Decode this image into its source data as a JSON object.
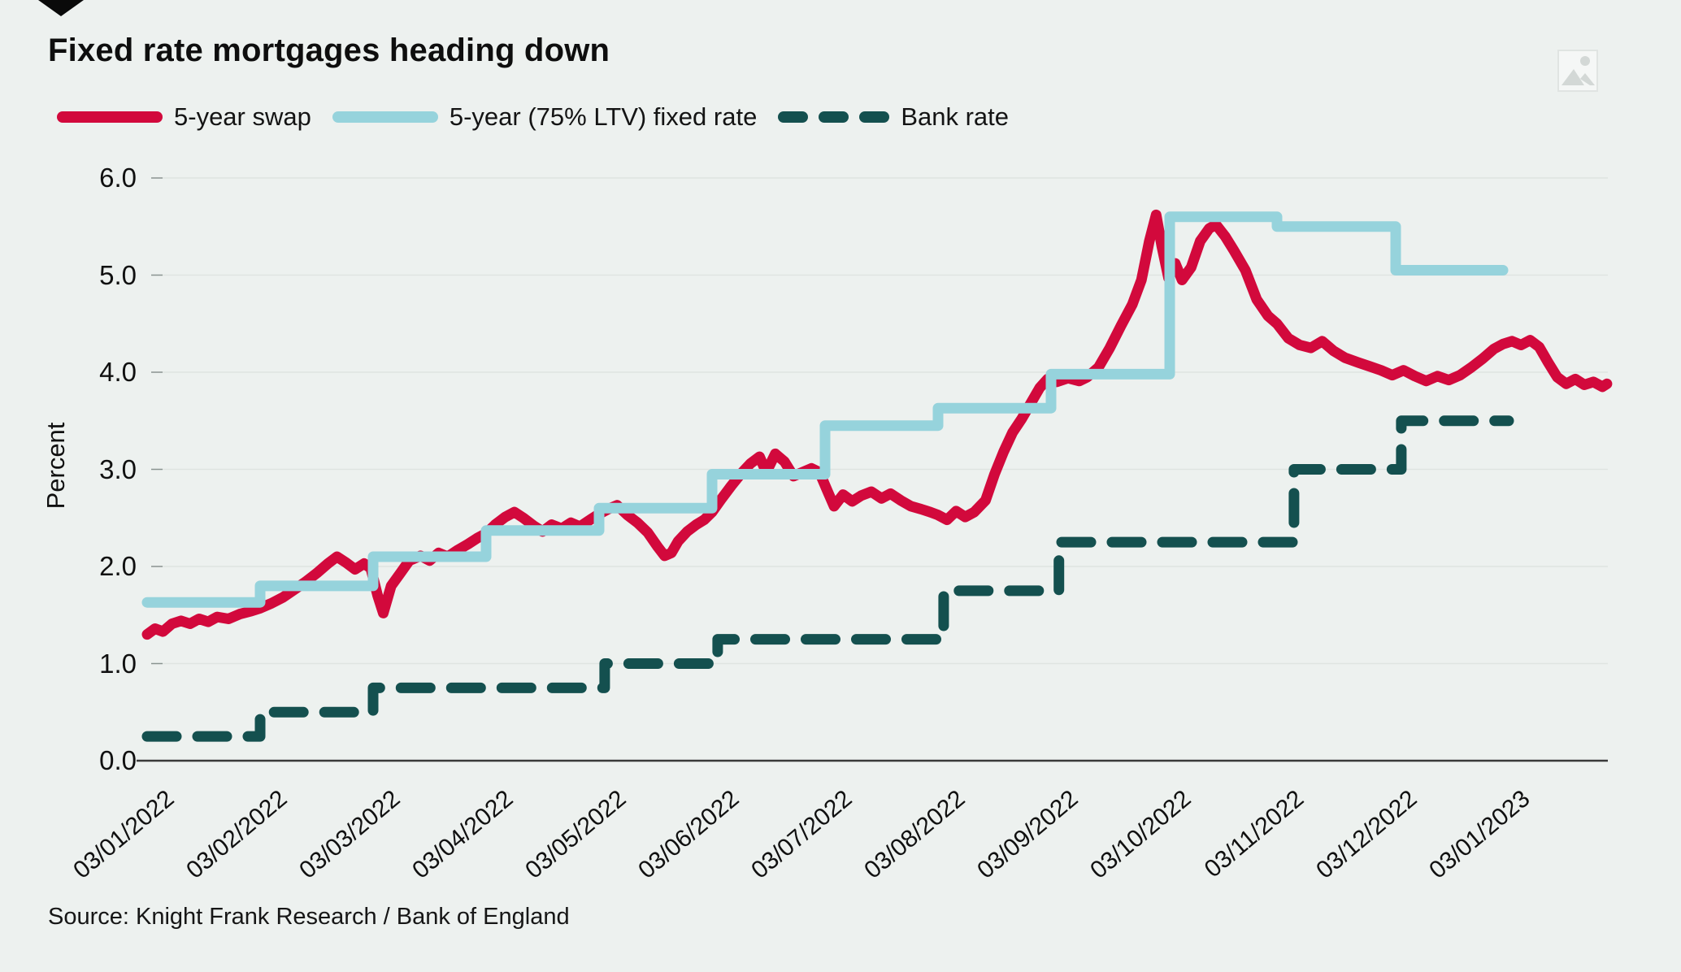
{
  "header": {
    "title": "Fixed rate mortgages heading down"
  },
  "legend": {
    "items": [
      {
        "label": "5-year swap",
        "color": "#d2093c",
        "style": "solid"
      },
      {
        "label": "5-year (75% LTV) fixed rate",
        "color": "#96d3dc",
        "style": "solid"
      },
      {
        "label": "Bank rate",
        "color": "#14504f",
        "style": "dashed"
      }
    ]
  },
  "footer": {
    "source": "Source: Knight Frank Research / Bank of England"
  },
  "icons": {
    "top_right": "image-placeholder-icon",
    "top_left": "down-arrow-marker-icon"
  },
  "colors": {
    "background": "#edf1ef",
    "gridline": "#dfe4e1",
    "axis": "#3a3a3a",
    "swap": "#d2093c",
    "fixed": "#96d3dc",
    "bank": "#14504f"
  },
  "chart_data": {
    "type": "line",
    "title": "Fixed rate mortgages heading down",
    "xlabel": "",
    "ylabel": "Percent",
    "ylim": [
      0.0,
      6.0
    ],
    "grid": "horizontal",
    "legend_position": "top-left",
    "x_unit": "months since 03/01/2022 (fractional)",
    "y_ticks": [
      "0.0",
      "1.0",
      "2.0",
      "3.0",
      "4.0",
      "5.0",
      "6.0"
    ],
    "x_ticks": [
      "03/01/2022",
      "03/02/2022",
      "03/03/2022",
      "03/04/2022",
      "03/05/2022",
      "03/06/2022",
      "03/07/2022",
      "03/08/2022",
      "03/09/2022",
      "03/10/2022",
      "03/11/2022",
      "03/12/2022",
      "03/01/2023"
    ],
    "series": [
      {
        "name": "5-year swap",
        "color": "#d2093c",
        "dashed": false,
        "points": [
          [
            0,
            1.3
          ],
          [
            0.07,
            1.36
          ],
          [
            0.14,
            1.33
          ],
          [
            0.22,
            1.41
          ],
          [
            0.3,
            1.44
          ],
          [
            0.38,
            1.41
          ],
          [
            0.46,
            1.46
          ],
          [
            0.54,
            1.43
          ],
          [
            0.62,
            1.48
          ],
          [
            0.72,
            1.46
          ],
          [
            0.82,
            1.51
          ],
          [
            0.92,
            1.54
          ],
          [
            1,
            1.57
          ],
          [
            1.1,
            1.62
          ],
          [
            1.2,
            1.68
          ],
          [
            1.3,
            1.76
          ],
          [
            1.4,
            1.84
          ],
          [
            1.5,
            1.93
          ],
          [
            1.6,
            2.03
          ],
          [
            1.68,
            2.1
          ],
          [
            1.76,
            2.04
          ],
          [
            1.84,
            1.97
          ],
          [
            1.92,
            2.03
          ],
          [
            1.98,
            1.98
          ],
          [
            2.04,
            1.7
          ],
          [
            2.09,
            1.52
          ],
          [
            2.16,
            1.8
          ],
          [
            2.24,
            1.93
          ],
          [
            2.32,
            2.06
          ],
          [
            2.42,
            2.11
          ],
          [
            2.5,
            2.06
          ],
          [
            2.58,
            2.14
          ],
          [
            2.66,
            2.1
          ],
          [
            2.75,
            2.17
          ],
          [
            2.84,
            2.23
          ],
          [
            2.92,
            2.29
          ],
          [
            3,
            2.34
          ],
          [
            3.08,
            2.43
          ],
          [
            3.17,
            2.51
          ],
          [
            3.25,
            2.56
          ],
          [
            3.33,
            2.5
          ],
          [
            3.42,
            2.42
          ],
          [
            3.5,
            2.36
          ],
          [
            3.58,
            2.43
          ],
          [
            3.67,
            2.39
          ],
          [
            3.75,
            2.45
          ],
          [
            3.83,
            2.41
          ],
          [
            3.92,
            2.48
          ],
          [
            4,
            2.54
          ],
          [
            4.08,
            2.59
          ],
          [
            4.16,
            2.63
          ],
          [
            4.25,
            2.53
          ],
          [
            4.34,
            2.45
          ],
          [
            4.43,
            2.35
          ],
          [
            4.52,
            2.2
          ],
          [
            4.58,
            2.11
          ],
          [
            4.64,
            2.14
          ],
          [
            4.7,
            2.26
          ],
          [
            4.78,
            2.36
          ],
          [
            4.86,
            2.43
          ],
          [
            4.93,
            2.48
          ],
          [
            5,
            2.56
          ],
          [
            5.08,
            2.69
          ],
          [
            5.17,
            2.83
          ],
          [
            5.26,
            2.96
          ],
          [
            5.34,
            3.06
          ],
          [
            5.42,
            3.13
          ],
          [
            5.48,
            2.97
          ],
          [
            5.56,
            3.16
          ],
          [
            5.64,
            3.08
          ],
          [
            5.72,
            2.93
          ],
          [
            5.8,
            2.97
          ],
          [
            5.88,
            3.01
          ],
          [
            5.95,
            2.97
          ],
          [
            6.02,
            2.78
          ],
          [
            6.08,
            2.62
          ],
          [
            6.16,
            2.74
          ],
          [
            6.24,
            2.67
          ],
          [
            6.32,
            2.73
          ],
          [
            6.41,
            2.77
          ],
          [
            6.5,
            2.7
          ],
          [
            6.58,
            2.75
          ],
          [
            6.67,
            2.68
          ],
          [
            6.76,
            2.62
          ],
          [
            6.85,
            2.59
          ],
          [
            6.93,
            2.56
          ],
          [
            7,
            2.53
          ],
          [
            7.08,
            2.48
          ],
          [
            7.16,
            2.57
          ],
          [
            7.24,
            2.51
          ],
          [
            7.32,
            2.56
          ],
          [
            7.42,
            2.68
          ],
          [
            7.5,
            2.95
          ],
          [
            7.58,
            3.18
          ],
          [
            7.66,
            3.38
          ],
          [
            7.74,
            3.52
          ],
          [
            7.82,
            3.68
          ],
          [
            7.9,
            3.84
          ],
          [
            7.97,
            3.93
          ],
          [
            8.05,
            3.9
          ],
          [
            8.15,
            3.94
          ],
          [
            8.25,
            3.91
          ],
          [
            8.32,
            3.95
          ],
          [
            8.42,
            4.05
          ],
          [
            8.52,
            4.25
          ],
          [
            8.62,
            4.48
          ],
          [
            8.72,
            4.7
          ],
          [
            8.8,
            4.95
          ],
          [
            8.87,
            5.35
          ],
          [
            8.93,
            5.62
          ],
          [
            8.98,
            5.3
          ],
          [
            9.04,
            4.97
          ],
          [
            9.1,
            5.12
          ],
          [
            9.16,
            4.95
          ],
          [
            9.24,
            5.08
          ],
          [
            9.32,
            5.35
          ],
          [
            9.4,
            5.48
          ],
          [
            9.46,
            5.52
          ],
          [
            9.54,
            5.4
          ],
          [
            9.62,
            5.25
          ],
          [
            9.72,
            5.05
          ],
          [
            9.82,
            4.75
          ],
          [
            9.92,
            4.58
          ],
          [
            10,
            4.5
          ],
          [
            10.1,
            4.35
          ],
          [
            10.2,
            4.28
          ],
          [
            10.3,
            4.25
          ],
          [
            10.4,
            4.32
          ],
          [
            10.5,
            4.22
          ],
          [
            10.6,
            4.15
          ],
          [
            10.72,
            4.1
          ],
          [
            10.82,
            4.06
          ],
          [
            10.92,
            4.02
          ],
          [
            11.02,
            3.97
          ],
          [
            11.12,
            4.02
          ],
          [
            11.22,
            3.96
          ],
          [
            11.32,
            3.91
          ],
          [
            11.42,
            3.96
          ],
          [
            11.52,
            3.92
          ],
          [
            11.62,
            3.97
          ],
          [
            11.72,
            4.05
          ],
          [
            11.82,
            4.14
          ],
          [
            11.92,
            4.24
          ],
          [
            12,
            4.29
          ],
          [
            12.08,
            4.32
          ],
          [
            12.16,
            4.28
          ],
          [
            12.24,
            4.33
          ],
          [
            12.32,
            4.26
          ],
          [
            12.4,
            4.1
          ],
          [
            12.48,
            3.95
          ],
          [
            12.56,
            3.88
          ],
          [
            12.64,
            3.93
          ],
          [
            12.72,
            3.87
          ],
          [
            12.8,
            3.9
          ],
          [
            12.88,
            3.85
          ],
          [
            12.92,
            3.88
          ]
        ]
      },
      {
        "name": "5-year (75% LTV) fixed rate",
        "color": "#96d3dc",
        "dashed": false,
        "points": [
          [
            0,
            1.63
          ],
          [
            1,
            1.63
          ],
          [
            1,
            1.8
          ],
          [
            2,
            1.8
          ],
          [
            2,
            2.1
          ],
          [
            3,
            2.1
          ],
          [
            3,
            2.37
          ],
          [
            4,
            2.37
          ],
          [
            4,
            2.6
          ],
          [
            5,
            2.6
          ],
          [
            5,
            2.95
          ],
          [
            6,
            2.95
          ],
          [
            6,
            3.45
          ],
          [
            7,
            3.45
          ],
          [
            7,
            3.63
          ],
          [
            8,
            3.63
          ],
          [
            8,
            3.98
          ],
          [
            9.05,
            3.98
          ],
          [
            9.05,
            5.6
          ],
          [
            10,
            5.6
          ],
          [
            10,
            5.5
          ],
          [
            11.05,
            5.5
          ],
          [
            11.05,
            5.05
          ],
          [
            12,
            5.05
          ]
        ]
      },
      {
        "name": "Bank rate",
        "color": "#14504f",
        "dashed": true,
        "points": [
          [
            0,
            0.25
          ],
          [
            1,
            0.25
          ],
          [
            1,
            0.5
          ],
          [
            2,
            0.5
          ],
          [
            2,
            0.75
          ],
          [
            4.05,
            0.75
          ],
          [
            4.05,
            1.0
          ],
          [
            5.05,
            1.0
          ],
          [
            5.05,
            1.25
          ],
          [
            7.05,
            1.25
          ],
          [
            7.05,
            1.75
          ],
          [
            8.07,
            1.75
          ],
          [
            8.07,
            2.25
          ],
          [
            10.15,
            2.25
          ],
          [
            10.15,
            3.0
          ],
          [
            11.1,
            3.0
          ],
          [
            11.1,
            3.5
          ],
          [
            12.05,
            3.5
          ]
        ]
      }
    ]
  }
}
